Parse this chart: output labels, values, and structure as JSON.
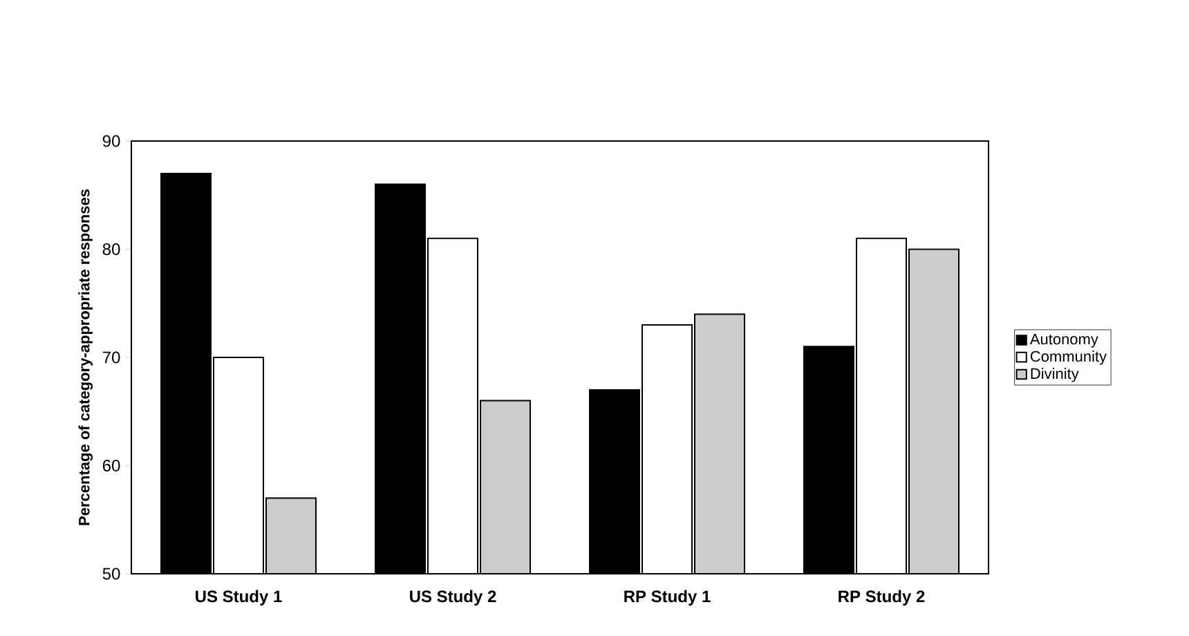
{
  "chart_data": {
    "type": "bar",
    "ylabel": "Percentage of category-appropriate responses",
    "categories": [
      "US Study 1",
      "US Study 2",
      "RP Study 1",
      "RP Study 2"
    ],
    "series": [
      {
        "name": "Autonomy",
        "color": "#000000",
        "values": [
          87,
          86,
          67,
          71
        ]
      },
      {
        "name": "Community",
        "color": "#ffffff",
        "values": [
          70,
          81,
          73,
          81
        ]
      },
      {
        "name": "Divinity",
        "color": "#cccccc",
        "values": [
          57,
          66,
          74,
          80
        ]
      }
    ],
    "ylim": [
      50,
      90
    ],
    "yticks": [
      50,
      60,
      70,
      80,
      90
    ],
    "legend": "right",
    "grid": false
  }
}
